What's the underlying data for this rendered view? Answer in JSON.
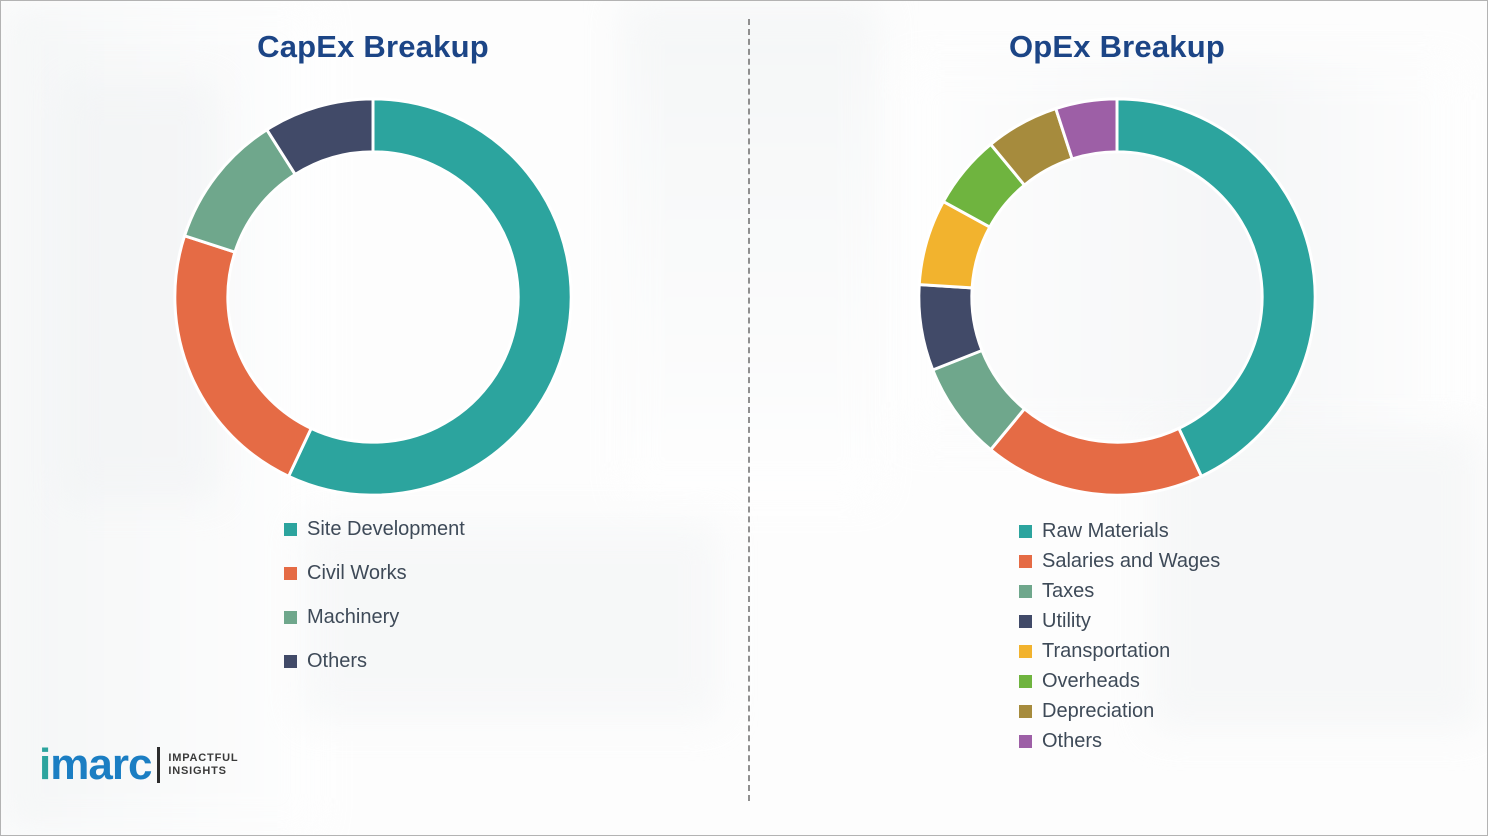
{
  "logo": {
    "brand_prefix": "i",
    "brand_rest": "marc",
    "tagline_line1": "IMPACTFUL",
    "tagline_line2": "INSIGHTS"
  },
  "chart_data": [
    {
      "type": "pie",
      "donut": true,
      "title": "CapEx Breakup",
      "legend_position": "bottom-left",
      "labels": [
        "Site Development",
        "Civil Works",
        "Machinery",
        "Others"
      ],
      "values": [
        57,
        23,
        11,
        9
      ],
      "colors": [
        "#2ca49e",
        "#e56b45",
        "#6fa78c",
        "#414a68"
      ],
      "start_angle_deg": 0,
      "direction": "clockwise"
    },
    {
      "type": "pie",
      "donut": true,
      "title": "OpEx Breakup",
      "legend_position": "bottom-left",
      "labels": [
        "Raw Materials",
        "Salaries and Wages",
        "Taxes",
        "Utility",
        "Transportation",
        "Overheads",
        "Depreciation",
        "Others"
      ],
      "values": [
        43,
        18,
        8,
        7,
        7,
        6,
        6,
        5
      ],
      "colors": [
        "#2ca49e",
        "#e56b45",
        "#6fa78c",
        "#414a68",
        "#f2b32e",
        "#6fb43f",
        "#a68b3d",
        "#9d5fa6"
      ],
      "start_angle_deg": 0,
      "direction": "clockwise"
    }
  ]
}
